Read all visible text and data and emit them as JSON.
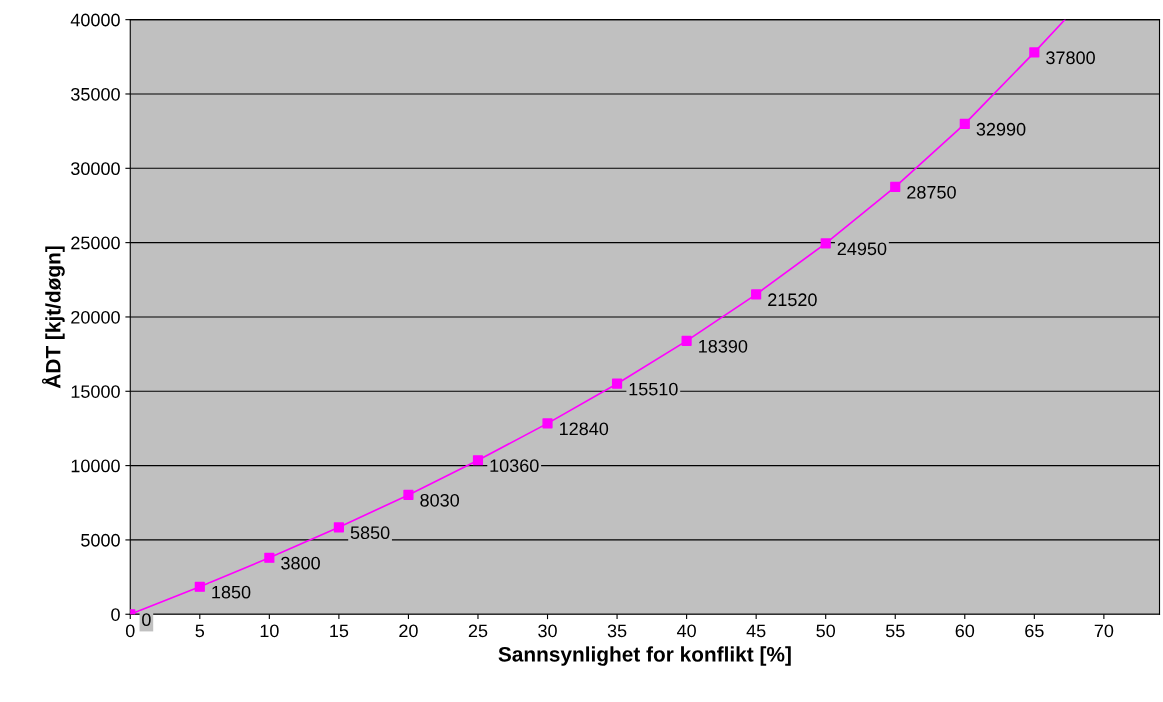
{
  "chart_data": {
    "type": "scatter",
    "xlabel": "Sannsynlighet for konflikt [%]",
    "ylabel": "ÅDT [kjt/døgn]",
    "xlim": [
      0,
      74
    ],
    "xticks": [
      0,
      5,
      10,
      15,
      20,
      25,
      30,
      35,
      40,
      45,
      50,
      55,
      60,
      65,
      70
    ],
    "ylim": [
      0,
      40000
    ],
    "yticks": [
      0,
      5000,
      10000,
      15000,
      20000,
      25000,
      30000,
      35000,
      40000
    ],
    "grid": "y",
    "legend": false,
    "series": [
      {
        "type": "line",
        "color": "#ff00ff",
        "marker": "none",
        "line_style": "solid",
        "x": [
          0,
          5,
          10,
          15,
          20,
          25,
          30,
          35,
          40,
          45,
          50,
          55,
          60,
          65,
          67.2
        ],
        "values": [
          0,
          1850,
          3800,
          5850,
          8030,
          10360,
          12840,
          15510,
          18390,
          21520,
          24950,
          28750,
          32990,
          37800,
          40000
        ]
      },
      {
        "color": "#ff00ff",
        "marker": "square",
        "data_labels": true,
        "x": [
          0,
          5,
          10,
          15,
          20,
          25,
          30,
          35,
          40,
          45,
          50,
          55,
          60,
          65
        ],
        "values": [
          0,
          1850,
          3800,
          5850,
          8030,
          10360,
          12840,
          15510,
          18390,
          21520,
          24950,
          28750,
          32990,
          37800
        ]
      }
    ]
  }
}
